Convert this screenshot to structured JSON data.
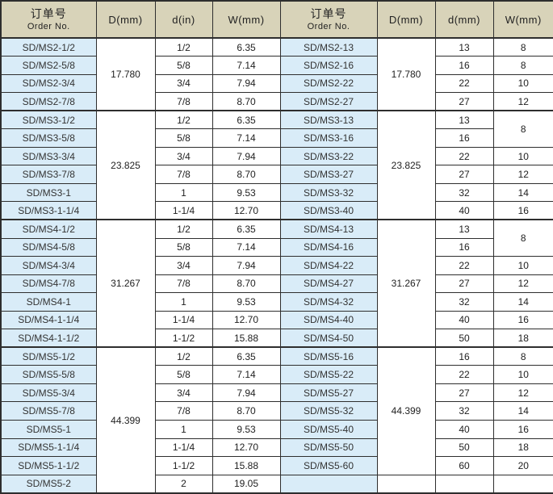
{
  "colors": {
    "header_bg": "#d8d3b9",
    "order_cell_bg": "#d9ecf8",
    "grid_border": "#2e2e2e",
    "text": "#1f1f1f"
  },
  "table": {
    "columns": [
      {
        "key": "order-left",
        "zh": "订单号",
        "en": "Order No."
      },
      {
        "key": "d-mm-left",
        "label": "D(mm)"
      },
      {
        "key": "d-in",
        "label": "d(in)"
      },
      {
        "key": "w-mm-left",
        "label": "W(mm)"
      },
      {
        "key": "order-right",
        "zh": "订单号",
        "en": "Order No."
      },
      {
        "key": "d-mm-right",
        "label": "D(mm)"
      },
      {
        "key": "d-mm",
        "label": "d(mm)"
      },
      {
        "key": "w-mm-right",
        "label": "W(mm)"
      }
    ],
    "rows": [
      {
        "section_start": false,
        "cells": [
          {
            "text": "SD/MS2-1/2",
            "type": "order"
          },
          {
            "text": "17.780",
            "type": "num",
            "rowspan": 4
          },
          {
            "text": "1/2",
            "type": "num"
          },
          {
            "text": "6.35",
            "type": "num"
          },
          {
            "text": "SD/MS2-13",
            "type": "order"
          },
          {
            "text": "17.780",
            "type": "num",
            "rowspan": 4
          },
          {
            "text": "13",
            "type": "num"
          },
          {
            "text": "8",
            "type": "num"
          }
        ]
      },
      {
        "section_start": false,
        "cells": [
          {
            "text": "SD/MS2-5/8",
            "type": "order"
          },
          {
            "text": "5/8",
            "type": "num"
          },
          {
            "text": "7.14",
            "type": "num"
          },
          {
            "text": "SD/MS2-16",
            "type": "order"
          },
          {
            "text": "16",
            "type": "num"
          },
          {
            "text": "8",
            "type": "num"
          }
        ]
      },
      {
        "section_start": false,
        "cells": [
          {
            "text": "SD/MS2-3/4",
            "type": "order"
          },
          {
            "text": "3/4",
            "type": "num"
          },
          {
            "text": "7.94",
            "type": "num"
          },
          {
            "text": "SD/MS2-22",
            "type": "order"
          },
          {
            "text": "22",
            "type": "num"
          },
          {
            "text": "10",
            "type": "num"
          }
        ]
      },
      {
        "section_start": false,
        "cells": [
          {
            "text": "SD/MS2-7/8",
            "type": "order"
          },
          {
            "text": "7/8",
            "type": "num"
          },
          {
            "text": "8.70",
            "type": "num"
          },
          {
            "text": "SD/MS2-27",
            "type": "order"
          },
          {
            "text": "27",
            "type": "num"
          },
          {
            "text": "12",
            "type": "num"
          }
        ]
      },
      {
        "section_start": true,
        "cells": [
          {
            "text": "SD/MS3-1/2",
            "type": "order"
          },
          {
            "text": "23.825",
            "type": "num",
            "rowspan": 6
          },
          {
            "text": "1/2",
            "type": "num"
          },
          {
            "text": "6.35",
            "type": "num"
          },
          {
            "text": "SD/MS3-13",
            "type": "order"
          },
          {
            "text": "23.825",
            "type": "num",
            "rowspan": 6
          },
          {
            "text": "13",
            "type": "num"
          },
          {
            "text": "8",
            "type": "num",
            "rowspan": 2
          }
        ]
      },
      {
        "section_start": false,
        "cells": [
          {
            "text": "SD/MS3-5/8",
            "type": "order"
          },
          {
            "text": "5/8",
            "type": "num"
          },
          {
            "text": "7.14",
            "type": "num"
          },
          {
            "text": "SD/MS3-16",
            "type": "order"
          },
          {
            "text": "16",
            "type": "num"
          }
        ]
      },
      {
        "section_start": false,
        "cells": [
          {
            "text": "SD/MS3-3/4",
            "type": "order"
          },
          {
            "text": "3/4",
            "type": "num"
          },
          {
            "text": "7.94",
            "type": "num"
          },
          {
            "text": "SD/MS3-22",
            "type": "order"
          },
          {
            "text": "22",
            "type": "num"
          },
          {
            "text": "10",
            "type": "num"
          }
        ]
      },
      {
        "section_start": false,
        "cells": [
          {
            "text": "SD/MS3-7/8",
            "type": "order"
          },
          {
            "text": "7/8",
            "type": "num"
          },
          {
            "text": "8.70",
            "type": "num"
          },
          {
            "text": "SD/MS3-27",
            "type": "order"
          },
          {
            "text": "27",
            "type": "num"
          },
          {
            "text": "12",
            "type": "num"
          }
        ]
      },
      {
        "section_start": false,
        "cells": [
          {
            "text": "SD/MS3-1",
            "type": "order"
          },
          {
            "text": "1",
            "type": "num"
          },
          {
            "text": "9.53",
            "type": "num"
          },
          {
            "text": "SD/MS3-32",
            "type": "order"
          },
          {
            "text": "32",
            "type": "num"
          },
          {
            "text": "14",
            "type": "num"
          }
        ]
      },
      {
        "section_start": false,
        "cells": [
          {
            "text": "SD/MS3-1-1/4",
            "type": "order"
          },
          {
            "text": "1-1/4",
            "type": "num"
          },
          {
            "text": "12.70",
            "type": "num"
          },
          {
            "text": "SD/MS3-40",
            "type": "order"
          },
          {
            "text": "40",
            "type": "num"
          },
          {
            "text": "16",
            "type": "num"
          }
        ]
      },
      {
        "section_start": true,
        "cells": [
          {
            "text": "SD/MS4-1/2",
            "type": "order"
          },
          {
            "text": "31.267",
            "type": "num",
            "rowspan": 7
          },
          {
            "text": "1/2",
            "type": "num"
          },
          {
            "text": "6.35",
            "type": "num"
          },
          {
            "text": "SD/MS4-13",
            "type": "order"
          },
          {
            "text": "31.267",
            "type": "num",
            "rowspan": 7
          },
          {
            "text": "13",
            "type": "num"
          },
          {
            "text": "8",
            "type": "num",
            "rowspan": 2
          }
        ]
      },
      {
        "section_start": false,
        "cells": [
          {
            "text": "SD/MS4-5/8",
            "type": "order"
          },
          {
            "text": "5/8",
            "type": "num"
          },
          {
            "text": "7.14",
            "type": "num"
          },
          {
            "text": "SD/MS4-16",
            "type": "order"
          },
          {
            "text": "16",
            "type": "num"
          }
        ]
      },
      {
        "section_start": false,
        "cells": [
          {
            "text": "SD/MS4-3/4",
            "type": "order"
          },
          {
            "text": "3/4",
            "type": "num"
          },
          {
            "text": "7.94",
            "type": "num"
          },
          {
            "text": "SD/MS4-22",
            "type": "order"
          },
          {
            "text": "22",
            "type": "num"
          },
          {
            "text": "10",
            "type": "num"
          }
        ]
      },
      {
        "section_start": false,
        "cells": [
          {
            "text": "SD/MS4-7/8",
            "type": "order"
          },
          {
            "text": "7/8",
            "type": "num"
          },
          {
            "text": "8.70",
            "type": "num"
          },
          {
            "text": "SD/MS4-27",
            "type": "order"
          },
          {
            "text": "27",
            "type": "num"
          },
          {
            "text": "12",
            "type": "num"
          }
        ]
      },
      {
        "section_start": false,
        "cells": [
          {
            "text": "SD/MS4-1",
            "type": "order"
          },
          {
            "text": "1",
            "type": "num"
          },
          {
            "text": "9.53",
            "type": "num"
          },
          {
            "text": "SD/MS4-32",
            "type": "order"
          },
          {
            "text": "32",
            "type": "num"
          },
          {
            "text": "14",
            "type": "num"
          }
        ]
      },
      {
        "section_start": false,
        "cells": [
          {
            "text": "SD/MS4-1-1/4",
            "type": "order"
          },
          {
            "text": "1-1/4",
            "type": "num"
          },
          {
            "text": "12.70",
            "type": "num"
          },
          {
            "text": "SD/MS4-40",
            "type": "order"
          },
          {
            "text": "40",
            "type": "num"
          },
          {
            "text": "16",
            "type": "num"
          }
        ]
      },
      {
        "section_start": false,
        "cells": [
          {
            "text": "SD/MS4-1-1/2",
            "type": "order"
          },
          {
            "text": "1-1/2",
            "type": "num"
          },
          {
            "text": "15.88",
            "type": "num"
          },
          {
            "text": "SD/MS4-50",
            "type": "order"
          },
          {
            "text": "50",
            "type": "num"
          },
          {
            "text": "18",
            "type": "num"
          }
        ]
      },
      {
        "section_start": true,
        "cells": [
          {
            "text": "SD/MS5-1/2",
            "type": "order"
          },
          {
            "text": "44.399",
            "type": "num",
            "rowspan": 8
          },
          {
            "text": "1/2",
            "type": "num"
          },
          {
            "text": "6.35",
            "type": "num"
          },
          {
            "text": "SD/MS5-16",
            "type": "order"
          },
          {
            "text": "44.399",
            "type": "num",
            "rowspan": 7
          },
          {
            "text": "16",
            "type": "num"
          },
          {
            "text": "8",
            "type": "num"
          }
        ]
      },
      {
        "section_start": false,
        "cells": [
          {
            "text": "SD/MS5-5/8",
            "type": "order"
          },
          {
            "text": "5/8",
            "type": "num"
          },
          {
            "text": "7.14",
            "type": "num"
          },
          {
            "text": "SD/MS5-22",
            "type": "order"
          },
          {
            "text": "22",
            "type": "num"
          },
          {
            "text": "10",
            "type": "num"
          }
        ]
      },
      {
        "section_start": false,
        "cells": [
          {
            "text": "SD/MS5-3/4",
            "type": "order"
          },
          {
            "text": "3/4",
            "type": "num"
          },
          {
            "text": "7.94",
            "type": "num"
          },
          {
            "text": "SD/MS5-27",
            "type": "order"
          },
          {
            "text": "27",
            "type": "num"
          },
          {
            "text": "12",
            "type": "num"
          }
        ]
      },
      {
        "section_start": false,
        "cells": [
          {
            "text": "SD/MS5-7/8",
            "type": "order"
          },
          {
            "text": "7/8",
            "type": "num"
          },
          {
            "text": "8.70",
            "type": "num"
          },
          {
            "text": "SD/MS5-32",
            "type": "order"
          },
          {
            "text": "32",
            "type": "num"
          },
          {
            "text": "14",
            "type": "num"
          }
        ]
      },
      {
        "section_start": false,
        "cells": [
          {
            "text": "SD/MS5-1",
            "type": "order"
          },
          {
            "text": "1",
            "type": "num"
          },
          {
            "text": "9.53",
            "type": "num"
          },
          {
            "text": "SD/MS5-40",
            "type": "order"
          },
          {
            "text": "40",
            "type": "num"
          },
          {
            "text": "16",
            "type": "num"
          }
        ]
      },
      {
        "section_start": false,
        "cells": [
          {
            "text": "SD/MS5-1-1/4",
            "type": "order"
          },
          {
            "text": "1-1/4",
            "type": "num"
          },
          {
            "text": "12.70",
            "type": "num"
          },
          {
            "text": "SD/MS5-50",
            "type": "order"
          },
          {
            "text": "50",
            "type": "num"
          },
          {
            "text": "18",
            "type": "num"
          }
        ]
      },
      {
        "section_start": false,
        "cells": [
          {
            "text": "SD/MS5-1-1/2",
            "type": "order"
          },
          {
            "text": "1-1/2",
            "type": "num"
          },
          {
            "text": "15.88",
            "type": "num"
          },
          {
            "text": "SD/MS5-60",
            "type": "order"
          },
          {
            "text": "60",
            "type": "num"
          },
          {
            "text": "20",
            "type": "num"
          }
        ]
      },
      {
        "section_start": false,
        "cells": [
          {
            "text": "SD/MS5-2",
            "type": "order"
          },
          {
            "text": "2",
            "type": "num"
          },
          {
            "text": "19.05",
            "type": "num"
          },
          {
            "text": "",
            "type": "order"
          },
          {
            "text": "",
            "type": "num"
          },
          {
            "text": "",
            "type": "num"
          },
          {
            "text": "",
            "type": "num"
          }
        ]
      }
    ]
  }
}
